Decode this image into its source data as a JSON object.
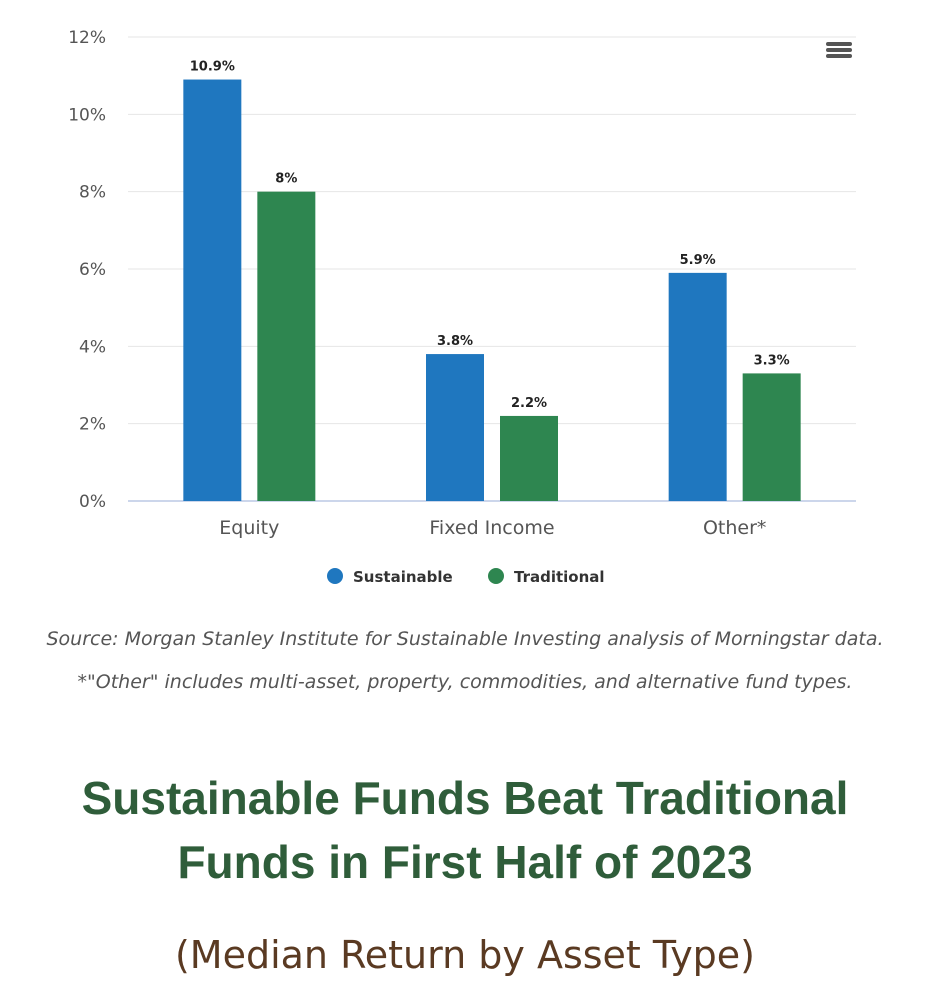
{
  "chart_data": {
    "type": "bar",
    "categories": [
      "Equity",
      "Fixed Income",
      "Other*"
    ],
    "series": [
      {
        "name": "Sustainable",
        "values": [
          10.9,
          3.8,
          5.9
        ],
        "labels": [
          "10.9%",
          "3.8%",
          "5.9%"
        ],
        "color": "#1f77bf"
      },
      {
        "name": "Traditional",
        "values": [
          8,
          2.2,
          3.3
        ],
        "labels": [
          "8%",
          "2.2%",
          "3.3%"
        ],
        "color": "#2e8650"
      }
    ],
    "ylim": [
      0,
      12
    ],
    "yticks": [
      "0%",
      "2%",
      "4%",
      "6%",
      "8%",
      "10%",
      "12%"
    ],
    "grid": true,
    "legend_position": "bottom-center"
  },
  "menu": {
    "icon": "hamburger-menu-icon"
  },
  "source_note": "Source: Morgan Stanley Institute for Sustainable Investing analysis of Morningstar data. *\"Other\" includes multi-asset, property, commodities, and alternative fund types.",
  "title": "Sustainable Funds Beat Traditional Funds in First Half of 2023",
  "subtitle": "(Median Return by Asset Type)"
}
